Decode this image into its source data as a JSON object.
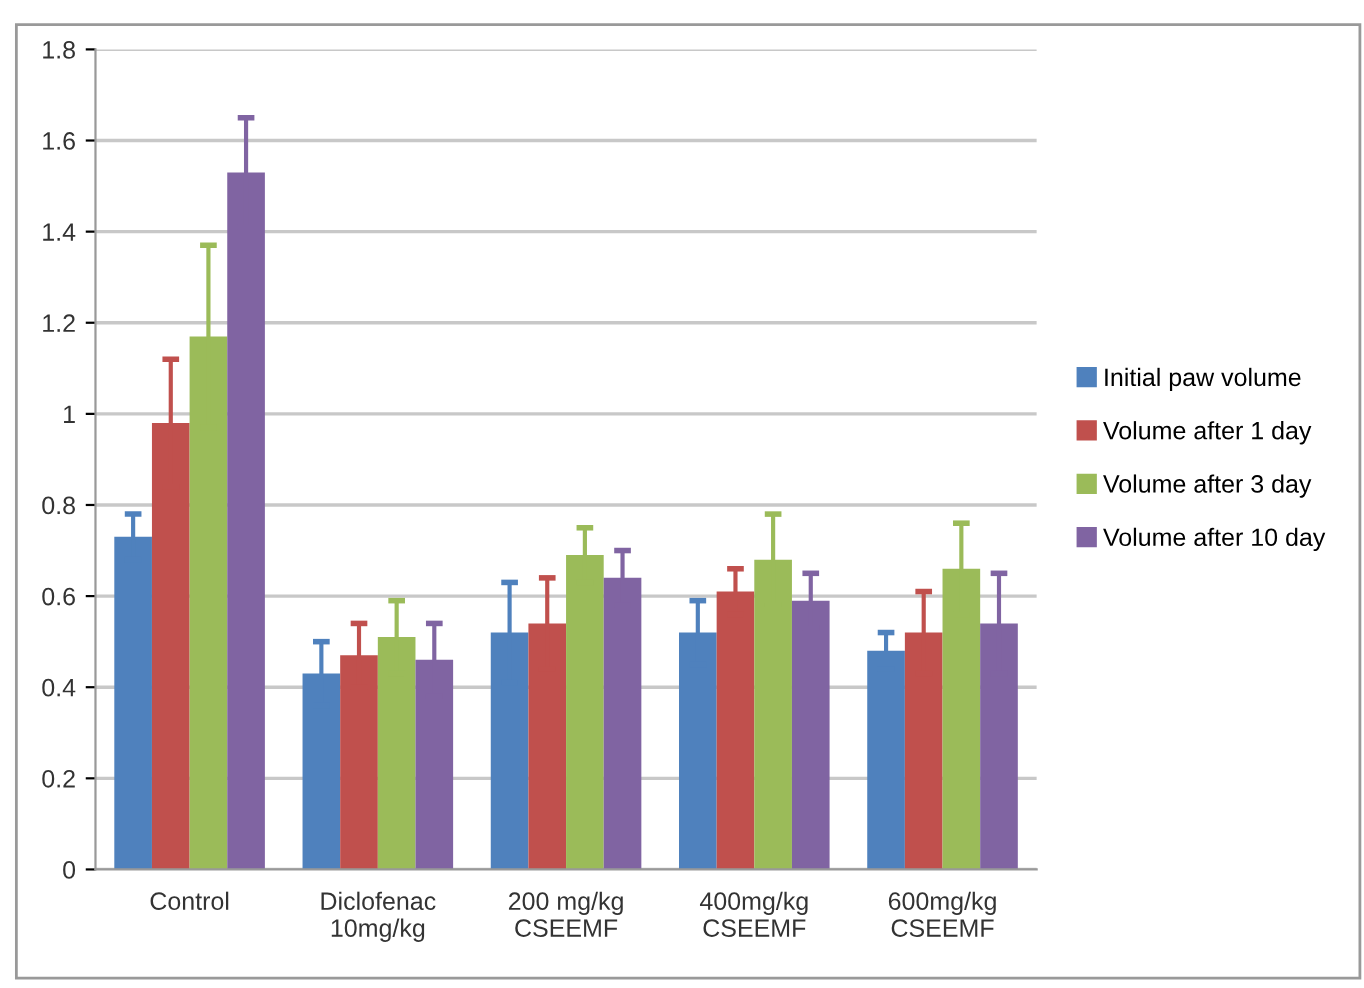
{
  "chart_data": {
    "type": "bar",
    "categories": [
      "Control",
      "Diclofenac\n10mg/kg",
      "200 mg/kg\nCSEEMF",
      "400mg/kg\nCSEEMF",
      "600mg/kg\nCSEEMF"
    ],
    "series": [
      {
        "name": "Initial paw volume",
        "color": "#4f81bd",
        "values": [
          0.73,
          0.43,
          0.52,
          0.52,
          0.48
        ],
        "errors": [
          0.05,
          0.07,
          0.11,
          0.07,
          0.04
        ]
      },
      {
        "name": "Volume after 1 day",
        "color": "#c0504d",
        "values": [
          0.98,
          0.47,
          0.54,
          0.61,
          0.52
        ],
        "errors": [
          0.14,
          0.07,
          0.1,
          0.05,
          0.09
        ]
      },
      {
        "name": "Volume after 3 day",
        "color": "#9bbb59",
        "values": [
          1.17,
          0.51,
          0.69,
          0.68,
          0.66
        ],
        "errors": [
          0.2,
          0.08,
          0.06,
          0.1,
          0.1
        ]
      },
      {
        "name": "Volume after 10 day",
        "color": "#8064a2",
        "values": [
          1.53,
          0.46,
          0.64,
          0.59,
          0.54
        ],
        "errors": [
          0.12,
          0.08,
          0.06,
          0.06,
          0.11
        ]
      }
    ],
    "ylim": [
      0,
      1.8
    ],
    "yticks": [
      0,
      0.2,
      0.4,
      0.6,
      0.8,
      1,
      1.2,
      1.4,
      1.6,
      1.8
    ],
    "grid": "y",
    "legend": "right"
  }
}
